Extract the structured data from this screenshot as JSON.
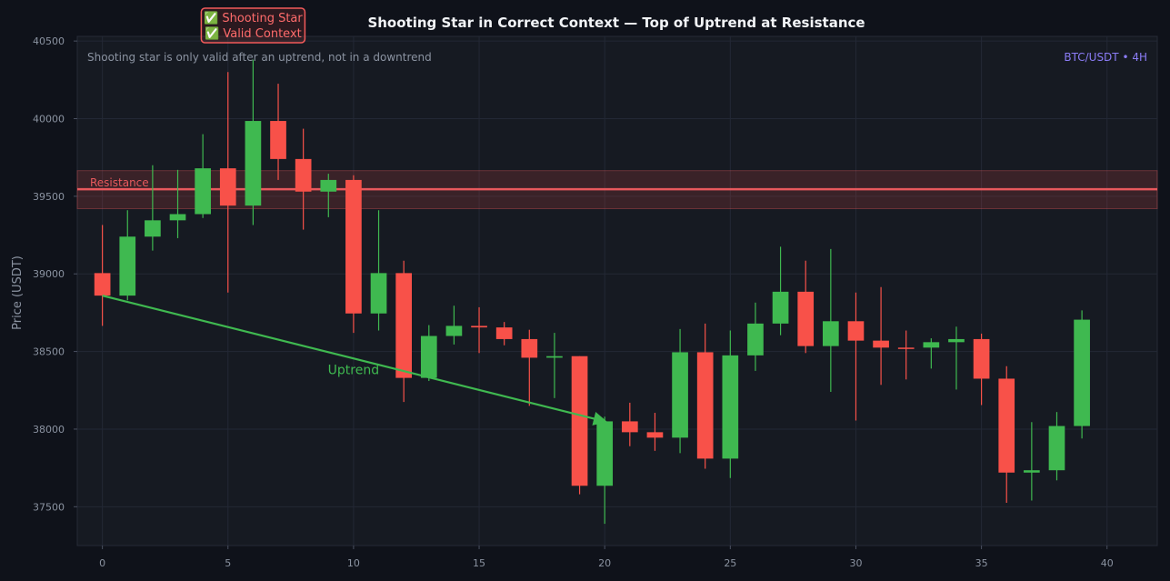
{
  "chart_data": {
    "type": "candlestick",
    "title": "Shooting Star in Correct Context — Top of Uptrend at Resistance",
    "subtitle": "Shooting star is only valid after an uptrend, not in a downtrend",
    "symbol": "BTC/USDT • 4H",
    "ylabel": "Price (USDT)",
    "xlabel": "",
    "xlim": [
      -1,
      42
    ],
    "ylim": [
      37250,
      40530
    ],
    "x_ticks": [
      0,
      5,
      10,
      15,
      20,
      25,
      30,
      35,
      40
    ],
    "y_ticks": [
      37500,
      38000,
      38500,
      39000,
      39500,
      40000,
      40500
    ],
    "grid": true,
    "colors": {
      "up": "#3fb950",
      "down": "#f85149",
      "resistance": "#e8595d",
      "trend": "#3fb950",
      "background": "#161a22"
    },
    "resistance": {
      "label": "Resistance",
      "level": 39545,
      "zone": [
        39420,
        39665
      ]
    },
    "trend_annotation": {
      "label": "Uptrend",
      "from": [
        0,
        38860
      ],
      "to": [
        20,
        38050
      ]
    },
    "callout": {
      "lines": [
        "✅ Shooting Star",
        "✅ Valid Context"
      ],
      "at_x": 6
    },
    "candles": [
      {
        "x": 0,
        "open": 39005,
        "high": 39315,
        "low": 38665,
        "close": 38860
      },
      {
        "x": 1,
        "open": 38860,
        "high": 39410,
        "low": 38830,
        "close": 39240
      },
      {
        "x": 2,
        "open": 39240,
        "high": 39700,
        "low": 39150,
        "close": 39345
      },
      {
        "x": 3,
        "open": 39345,
        "high": 39670,
        "low": 39230,
        "close": 39385
      },
      {
        "x": 4,
        "open": 39385,
        "high": 39900,
        "low": 39360,
        "close": 39680
      },
      {
        "x": 5,
        "open": 39680,
        "high": 40300,
        "low": 38880,
        "close": 39440
      },
      {
        "x": 6,
        "open": 39440,
        "high": 40380,
        "low": 39315,
        "close": 39985
      },
      {
        "x": 7,
        "open": 39985,
        "high": 40225,
        "low": 39605,
        "close": 39740
      },
      {
        "x": 8,
        "open": 39740,
        "high": 39935,
        "low": 39285,
        "close": 39530
      },
      {
        "x": 9,
        "open": 39530,
        "high": 39645,
        "low": 39365,
        "close": 39605
      },
      {
        "x": 10,
        "open": 39605,
        "high": 39635,
        "low": 38620,
        "close": 38745
      },
      {
        "x": 11,
        "open": 38745,
        "high": 39410,
        "low": 38635,
        "close": 39005
      },
      {
        "x": 12,
        "open": 39005,
        "high": 39085,
        "low": 38175,
        "close": 38330
      },
      {
        "x": 13,
        "open": 38330,
        "high": 38670,
        "low": 38310,
        "close": 38600
      },
      {
        "x": 14,
        "open": 38600,
        "high": 38795,
        "low": 38545,
        "close": 38665
      },
      {
        "x": 15,
        "open": 38665,
        "high": 38785,
        "low": 38490,
        "close": 38655
      },
      {
        "x": 16,
        "open": 38655,
        "high": 38690,
        "low": 38540,
        "close": 38580
      },
      {
        "x": 17,
        "open": 38580,
        "high": 38640,
        "low": 38150,
        "close": 38460
      },
      {
        "x": 18,
        "open": 38460,
        "high": 38620,
        "low": 38200,
        "close": 38470
      },
      {
        "x": 19,
        "open": 38470,
        "high": 38470,
        "low": 37580,
        "close": 37635
      },
      {
        "x": 20,
        "open": 37635,
        "high": 38080,
        "low": 37390,
        "close": 38050
      },
      {
        "x": 21,
        "open": 38050,
        "high": 38170,
        "low": 37890,
        "close": 37980
      },
      {
        "x": 22,
        "open": 37980,
        "high": 38105,
        "low": 37860,
        "close": 37945
      },
      {
        "x": 23,
        "open": 37945,
        "high": 38645,
        "low": 37845,
        "close": 38495
      },
      {
        "x": 24,
        "open": 38495,
        "high": 38680,
        "low": 37745,
        "close": 37810
      },
      {
        "x": 25,
        "open": 37810,
        "high": 38635,
        "low": 37685,
        "close": 38475
      },
      {
        "x": 26,
        "open": 38475,
        "high": 38815,
        "low": 38375,
        "close": 38680
      },
      {
        "x": 27,
        "open": 38680,
        "high": 39175,
        "low": 38605,
        "close": 38885
      },
      {
        "x": 28,
        "open": 38885,
        "high": 39085,
        "low": 38490,
        "close": 38535
      },
      {
        "x": 29,
        "open": 38535,
        "high": 39160,
        "low": 38240,
        "close": 38695
      },
      {
        "x": 30,
        "open": 38695,
        "high": 38880,
        "low": 38055,
        "close": 38570
      },
      {
        "x": 31,
        "open": 38570,
        "high": 38915,
        "low": 38285,
        "close": 38525
      },
      {
        "x": 32,
        "open": 38525,
        "high": 38635,
        "low": 38320,
        "close": 38520
      },
      {
        "x": 33,
        "open": 38525,
        "high": 38585,
        "low": 38390,
        "close": 38560
      },
      {
        "x": 34,
        "open": 38560,
        "high": 38660,
        "low": 38255,
        "close": 38580
      },
      {
        "x": 35,
        "open": 38580,
        "high": 38615,
        "low": 38155,
        "close": 38325
      },
      {
        "x": 36,
        "open": 38325,
        "high": 38405,
        "low": 37525,
        "close": 37720
      },
      {
        "x": 37,
        "open": 37720,
        "high": 38045,
        "low": 37540,
        "close": 37735
      },
      {
        "x": 38,
        "open": 37735,
        "high": 38110,
        "low": 37670,
        "close": 38020
      },
      {
        "x": 39,
        "open": 38020,
        "high": 38765,
        "low": 37940,
        "close": 38705
      }
    ]
  }
}
